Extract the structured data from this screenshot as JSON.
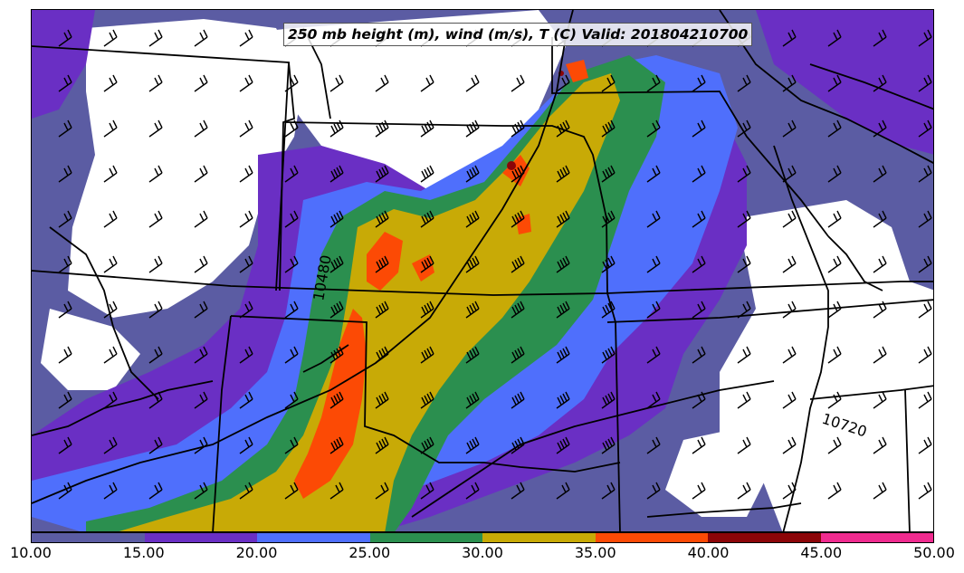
{
  "title": "250 mb height (m), wind (m/s), T (C) Valid: 201804210700",
  "contour_labels": [
    "10480",
    "10720"
  ],
  "colorbar": {
    "ticks": [
      "10.00",
      "15.00",
      "20.00",
      "25.00",
      "30.00",
      "35.00",
      "40.00",
      "45.00",
      "50.00"
    ],
    "colors": [
      "#5b5ca3",
      "#6a2fc4",
      "#4f6ffc",
      "#2b8f4f",
      "#c8aa06",
      "#fc4a05",
      "#8c0508",
      "#f02b8f"
    ]
  },
  "legend_colors": {
    "below_10": "#ffffff",
    "10_15": "#5b5ca3",
    "15_20": "#6a2fc4",
    "20_25": "#4f6ffc",
    "25_30": "#2b8f4f",
    "30_35": "#c8aa06",
    "35_40": "#fc4a05",
    "40_45": "#8c0508",
    "45_50": "#f02b8f"
  },
  "icons": [
    "wind-barb-icon"
  ]
}
